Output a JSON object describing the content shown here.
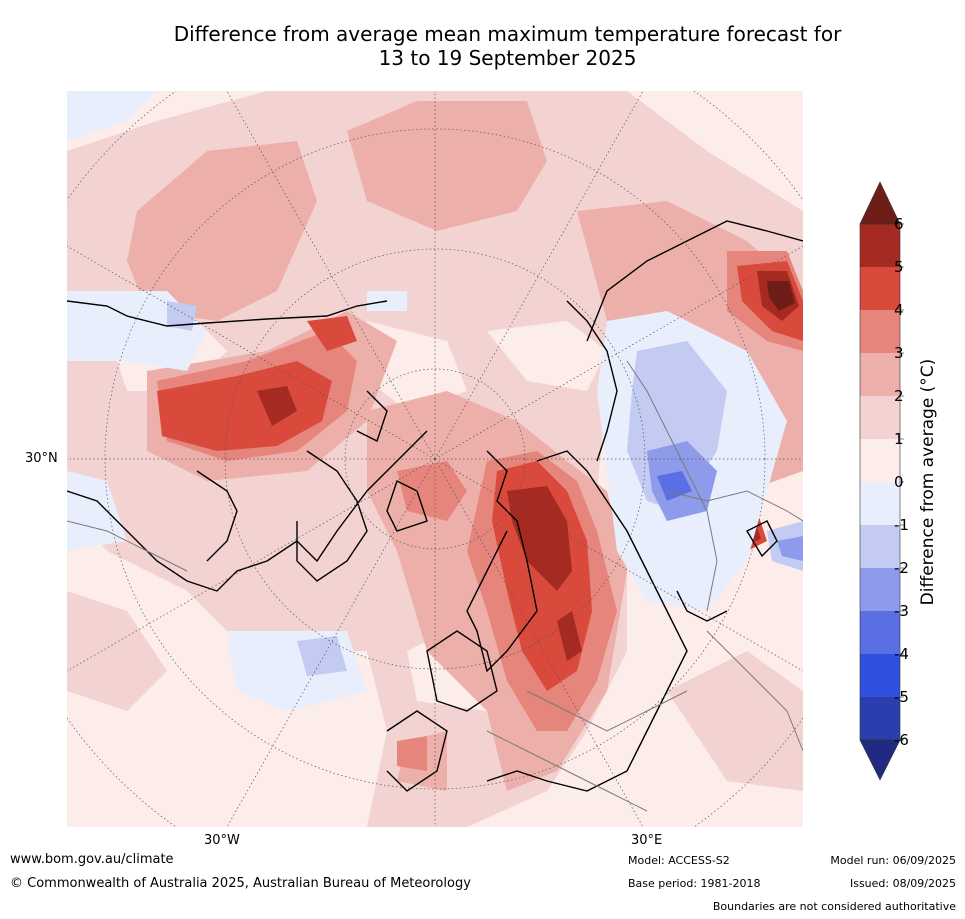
{
  "title": {
    "line1": "Difference from average mean maximum temperature forecast for",
    "line2": "13 to 19 September 2025"
  },
  "axes": {
    "lon_west": "30°W",
    "lon_east": "30°E",
    "lat": "30°N"
  },
  "colorbar": {
    "label": "Difference from average (°C)",
    "ticks": [
      "6",
      "5",
      "4",
      "3",
      "2",
      "1",
      "0",
      "-1",
      "-2",
      "-3",
      "-4",
      "-5",
      "-6"
    ],
    "colors": {
      "over": "#6e1d17",
      "5_6": "#a52a22",
      "4_5": "#d94a3d",
      "3_4": "#e5857b",
      "2_3": "#edafaa",
      "1_2": "#f3d3d1",
      "0_1": "#fcecea",
      "m1_0": "#e9eefc",
      "m2_m1": "#c3cbf3",
      "m3_m2": "#8d9bea",
      "m4_m3": "#5a6fe3",
      "m5_m4": "#3050e0",
      "m6_m5": "#2b3eae",
      "under": "#1f2a80"
    },
    "ocean_default": "#fcecea"
  },
  "footer": {
    "url": "www.bom.gov.au/climate",
    "copyright": "© Commonwealth of Australia 2025, Australian Bureau of Meteorology",
    "model": "Model: ACCESS-S2",
    "base_period": "Base period: 1981-2018",
    "model_run": "Model run: 06/09/2025",
    "issued": "Issued: 08/09/2025",
    "disclaimer": "Boundaries are not considered authoritative"
  }
}
